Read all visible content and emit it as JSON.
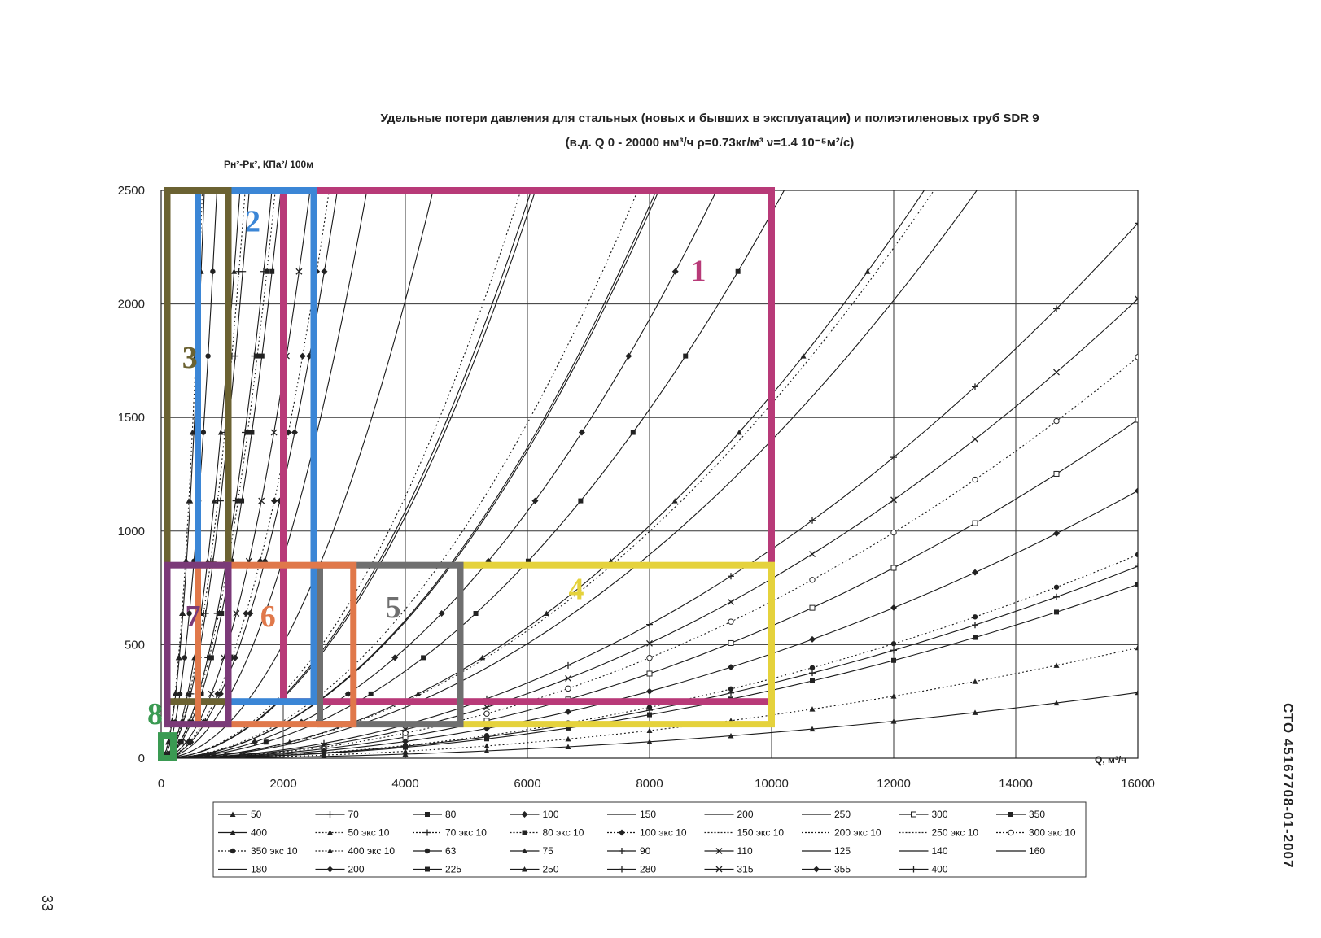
{
  "page": {
    "doc_code": "СТО 45167708-01-2007",
    "page_number": "33"
  },
  "chart_data": {
    "type": "line",
    "title": "Удельные потери давления для стальных (новых и бывших в эксплуатации) и полиэтиленовых труб SDR 9",
    "subtitle": "(в.д. Q 0 - 20000 нм³/ч ρ=0.73кг/м³ ν=1.4 10⁻⁵м²/с)",
    "ylabel": "Pн²-Pк², КПа²/ 100м",
    "xlabel": "Q, м³/ч",
    "xlim": [
      0,
      16000
    ],
    "ylim": [
      0,
      2500
    ],
    "x_ticks": [
      "0",
      "2000",
      "4000",
      "6000",
      "8000",
      "10000",
      "12000",
      "14000",
      "16000"
    ],
    "y_ticks": [
      "0",
      "500",
      "1000",
      "1500",
      "2000",
      "2500"
    ],
    "grid": true,
    "legend_position": "bottom",
    "legend": [
      "50",
      "70",
      "80",
      "100",
      "150",
      "200",
      "250",
      "300",
      "350",
      "400",
      "50 экс 10",
      "70 экс 10",
      "80 экс 10",
      "100 экс 10",
      "150 экс 10",
      "200 экс 10",
      "250 экс 10",
      "300 экс 10",
      "350 экс 10",
      "400 экс 10",
      "63",
      "75",
      "90",
      "110",
      "125",
      "140",
      "160",
      "180",
      "200",
      "225",
      "250",
      "280",
      "315",
      "355",
      "400"
    ],
    "series": [
      {
        "name": "50",
        "style": "solid",
        "marker": "triangle",
        "k": 5000
      },
      {
        "name": "70",
        "style": "solid",
        "marker": "plus",
        "k": 1200
      },
      {
        "name": "80",
        "style": "solid",
        "marker": "square",
        "k": 650
      },
      {
        "name": "100",
        "style": "solid",
        "marker": "diamond",
        "k": 300
      },
      {
        "name": "150",
        "style": "solid",
        "marker": "none",
        "k": 66.5
      },
      {
        "name": "200",
        "style": "solid",
        "marker": "none",
        "k": 37.6
      },
      {
        "name": "250",
        "style": "solid",
        "marker": "none",
        "k": 14.0
      },
      {
        "name": "300",
        "style": "solid",
        "marker": "square-open",
        "k": 5.82
      },
      {
        "name": "350",
        "style": "solid",
        "marker": "square",
        "k": 2.99
      },
      {
        "name": "400",
        "style": "solid",
        "marker": "triangle",
        "k": 1.13
      },
      {
        "name": "50 экс 10",
        "style": "dotted",
        "marker": "triangle",
        "k": 5500
      },
      {
        "name": "70 экс 10",
        "style": "dotted",
        "marker": "plus",
        "k": 1320
      },
      {
        "name": "80 экс 10",
        "style": "dotted",
        "marker": "square",
        "k": 715
      },
      {
        "name": "100 экс 10",
        "style": "dotted",
        "marker": "diamond",
        "k": 330
      },
      {
        "name": "150 экс 10",
        "style": "dotted",
        "marker": "none",
        "k": 72
      },
      {
        "name": "200 экс 10",
        "style": "dotted",
        "marker": "none",
        "k": 41
      },
      {
        "name": "250 экс 10",
        "style": "dotted",
        "marker": "none",
        "k": 15.6
      },
      {
        "name": "300 экс 10",
        "style": "dotted",
        "marker": "circle-open",
        "k": 6.9
      },
      {
        "name": "350 экс 10",
        "style": "dotted",
        "marker": "circle",
        "k": 3.5
      },
      {
        "name": "400 экс 10",
        "style": "dotted",
        "marker": "triangle",
        "k": 1.9
      },
      {
        "name": "63",
        "style": "solid",
        "marker": "circle",
        "k": 3000
      },
      {
        "name": "75",
        "style": "solid",
        "marker": "triangle",
        "k": 1500
      },
      {
        "name": "90",
        "style": "solid",
        "marker": "plus",
        "k": 760
      },
      {
        "name": "110",
        "style": "solid",
        "marker": "cross",
        "k": 420
      },
      {
        "name": "125",
        "style": "solid",
        "marker": "none",
        "k": 220
      },
      {
        "name": "140",
        "style": "solid",
        "marker": "none",
        "k": 126
      },
      {
        "name": "160",
        "style": "solid",
        "marker": "none",
        "k": 68
      },
      {
        "name": "180",
        "style": "solid",
        "marker": "none",
        "k": 38
      },
      {
        "name": "200",
        "style": "solid",
        "marker": "diamond",
        "k": 30.2
      },
      {
        "name": "225",
        "style": "solid",
        "marker": "square",
        "k": 24
      },
      {
        "name": "250",
        "style": "solid",
        "marker": "triangle",
        "k": 16
      },
      {
        "name": "280",
        "style": "solid",
        "marker": "plus",
        "k": 9.2
      },
      {
        "name": "315",
        "style": "solid",
        "marker": "cross",
        "k": 7.9
      },
      {
        "name": "355",
        "style": "solid",
        "marker": "diamond",
        "k": 4.6
      },
      {
        "name": "400",
        "style": "solid",
        "marker": "plus",
        "k": 3.3
      }
    ],
    "zones": [
      {
        "label": "1",
        "color": "#b83a78",
        "x0": 2000,
        "x1": 10000,
        "y0": 250,
        "y1": 2500
      },
      {
        "label": "2",
        "color": "#3b86d6",
        "x0": 600,
        "x1": 2500,
        "y0": 250,
        "y1": 2500
      },
      {
        "label": "3",
        "color": "#6b6232",
        "x0": 100,
        "x1": 1100,
        "y0": 250,
        "y1": 2500
      },
      {
        "label": "4",
        "color": "#e5d23c",
        "x0": 4900,
        "x1": 10000,
        "y0": 150,
        "y1": 850
      },
      {
        "label": "5",
        "color": "#6f6f6f",
        "x0": 2600,
        "x1": 4900,
        "y0": 150,
        "y1": 850
      },
      {
        "label": "6",
        "color": "#e0784a",
        "x0": 600,
        "x1": 3150,
        "y0": 150,
        "y1": 850
      },
      {
        "label": "7",
        "color": "#7b3a78",
        "x0": 100,
        "x1": 1100,
        "y0": 150,
        "y1": 850
      },
      {
        "label": "8",
        "color": "#3a9a52",
        "x0": 0,
        "x1": 200,
        "y0": 0,
        "y1": 100
      }
    ]
  }
}
